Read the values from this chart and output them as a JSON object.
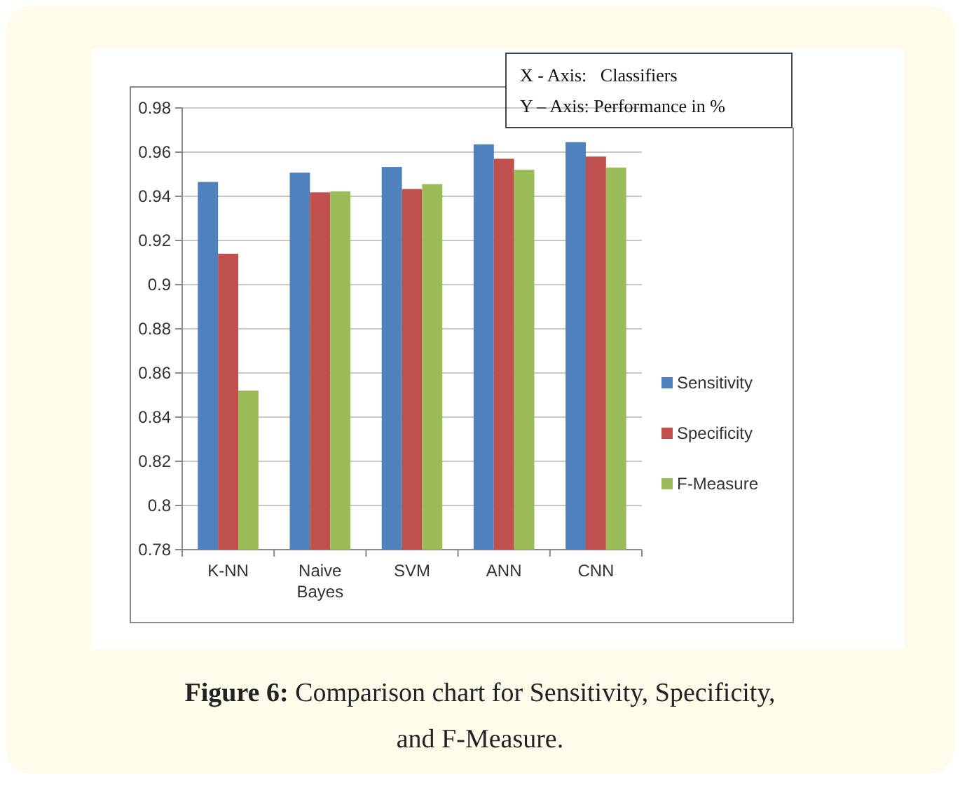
{
  "chart_data": {
    "type": "bar",
    "xlabel": "X - Axis:   Classifiers",
    "ylabel": "Y – Axis: Performance in %",
    "categories": [
      "K-NN",
      "Naive Bayes",
      "SVM",
      "ANN",
      "CNN"
    ],
    "series": [
      {
        "name": "Sensitivity",
        "color": "#4f81bd",
        "values": [
          0.9465,
          0.9507,
          0.9533,
          0.9635,
          0.9645
        ]
      },
      {
        "name": "Specificity",
        "color": "#c0504d",
        "values": [
          0.914,
          0.9418,
          0.9433,
          0.957,
          0.958
        ]
      },
      {
        "name": "F-Measure",
        "color": "#9bbb59",
        "values": [
          0.852,
          0.9422,
          0.9455,
          0.952,
          0.953
        ]
      }
    ],
    "ylim": [
      0.78,
      0.98
    ],
    "yticks": [
      0.78,
      0.8,
      0.82,
      0.84,
      0.86,
      0.88,
      0.9,
      0.92,
      0.94,
      0.96,
      0.98
    ],
    "grid": "y",
    "legend": "right",
    "annotations": [
      "Figure 6: Comparison chart for Sensitivity, Specificity, and F-Measure."
    ]
  }
}
